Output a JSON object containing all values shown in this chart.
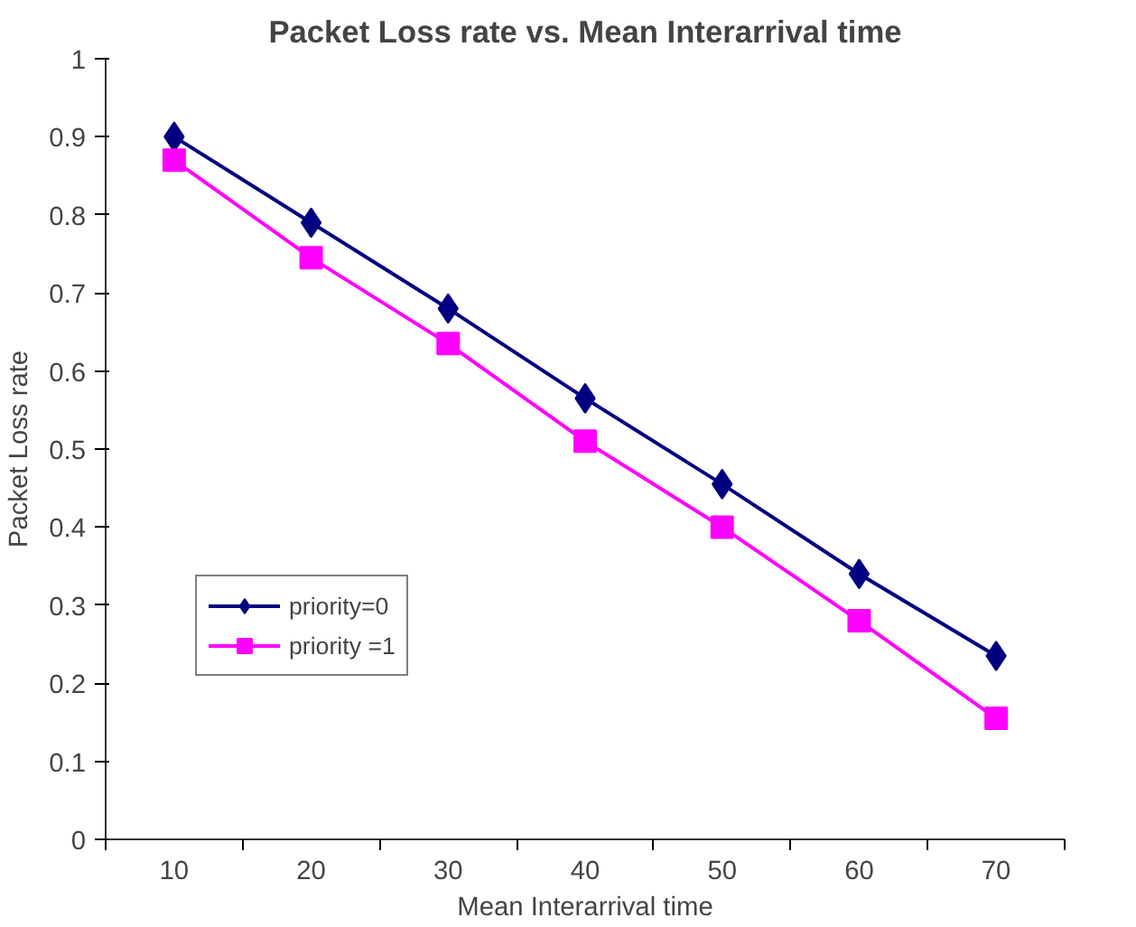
{
  "chart_data": {
    "type": "line",
    "title": "Packet Loss rate vs. Mean Interarrival time",
    "xlabel": "Mean Interarrival time",
    "ylabel": "Packet Loss rate",
    "categories": [
      "10",
      "20",
      "30",
      "40",
      "50",
      "60",
      "70"
    ],
    "series": [
      {
        "name": "priority=0",
        "color": "#000080",
        "marker": "diamond",
        "values": [
          0.9,
          0.79,
          0.68,
          0.565,
          0.455,
          0.34,
          0.235
        ]
      },
      {
        "name": "priority =1",
        "color": "#ff00ff",
        "marker": "square",
        "values": [
          0.87,
          0.745,
          0.635,
          0.51,
          0.4,
          0.28,
          0.155
        ]
      }
    ],
    "ylim": [
      0,
      1
    ],
    "yticks": [
      0,
      0.1,
      0.2,
      0.3,
      0.4,
      0.5,
      0.6,
      0.7,
      0.8,
      0.9,
      1
    ],
    "grid": false,
    "legend": "left"
  }
}
